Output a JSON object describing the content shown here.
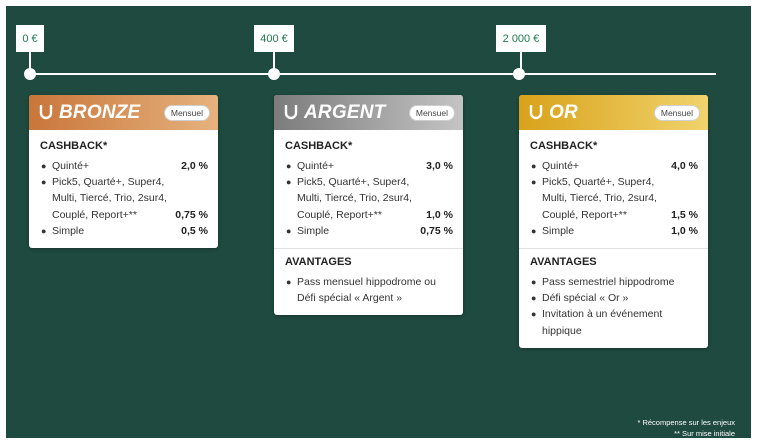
{
  "thresholds": [
    "0 €",
    "400 €",
    "2 000 €"
  ],
  "tiers": [
    {
      "name": "BRONZE",
      "badge": "Mensuel",
      "color_start": "#c9763a",
      "color_end": "#e6b27e",
      "icon": "horseshoe-icon",
      "cashback_title": "CASHBACK*",
      "cashback": [
        {
          "label": "Quinté+",
          "value": "2,0 %"
        },
        {
          "label": "Pick5, Quarté+, Super4, Multi, Tiercé, Trio, 2sur4, Couplé, Report+**",
          "value": "0,75 %"
        },
        {
          "label": "Simple",
          "value": "0,5 %"
        }
      ]
    },
    {
      "name": "ARGENT",
      "badge": "Mensuel",
      "color_start": "#7c7c7c",
      "color_end": "#c4c4c4",
      "icon": "horseshoe-icon",
      "cashback_title": "CASHBACK*",
      "cashback": [
        {
          "label": "Quinté+",
          "value": "3,0 %"
        },
        {
          "label": "Pick5, Quarté+, Super4, Multi, Tiercé, Trio, 2sur4, Couplé, Report+**",
          "value": "1,0 %"
        },
        {
          "label": "Simple",
          "value": "0,75 %"
        }
      ],
      "advantages_title": "AVANTAGES",
      "advantages": [
        "Pass mensuel hippodrome ou Défi spécial « Argent »"
      ]
    },
    {
      "name": "OR",
      "badge": "Mensuel",
      "color_start": "#d9a21b",
      "color_end": "#f0d36c",
      "icon": "horseshoe-icon",
      "cashback_title": "CASHBACK*",
      "cashback": [
        {
          "label": "Quinté+",
          "value": "4,0 %"
        },
        {
          "label": "Pick5, Quarté+, Super4, Multi, Tiercé, Trio, 2sur4, Couplé, Report+**",
          "value": "1,5 %"
        },
        {
          "label": "Simple",
          "value": "1,0 %"
        }
      ],
      "advantages_title": "AVANTAGES",
      "advantages": [
        "Pass semestriel hippodrome",
        "Défi spécial « Or »",
        "Invitation à un événement hippique"
      ]
    }
  ],
  "footnotes": [
    "* Récompense sur les enjeux",
    "** Sur mise initiale"
  ]
}
